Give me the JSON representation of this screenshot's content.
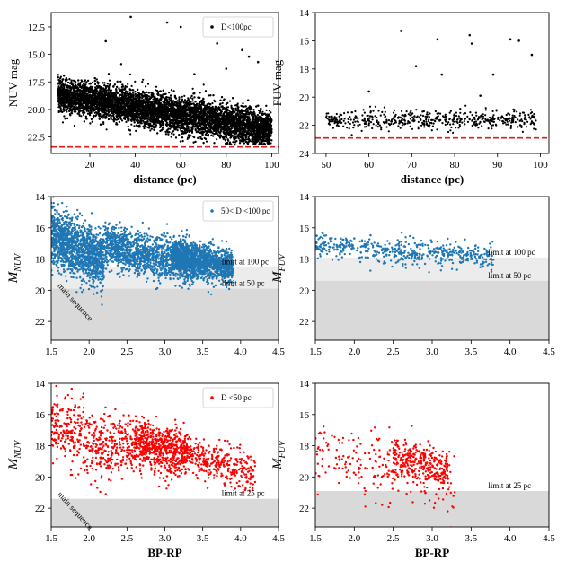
{
  "chart_data": [
    {
      "id": "p1",
      "type": "scatter",
      "xlim": [
        3,
        103
      ],
      "ylim": [
        24,
        11.2
      ],
      "yinverted": true,
      "xticks": [
        20,
        40,
        60,
        80,
        100
      ],
      "yticks": [
        12.5,
        15.0,
        17.5,
        20.0,
        22.5
      ],
      "xticklabels": [
        "20",
        "40",
        "60",
        "80",
        "100"
      ],
      "yticklabels": [
        "12.5",
        "15.0",
        "17.5",
        "20.0",
        "22.5"
      ],
      "xlabel": "distance (pc)",
      "ylabel": "NUV mag",
      "legend": "D<100pc",
      "legend_loc": "upper right",
      "limit_line": 23.4,
      "limit_line_color": "#e31a1c",
      "point_color": "#000000",
      "series": {
        "n": 9500,
        "x_range": [
          6,
          100
        ],
        "y_center": [
          18.6,
          21.9
        ],
        "y_spread": 1.4
      },
      "outliers": [
        [
          38,
          11.6
        ],
        [
          27,
          13.8
        ],
        [
          54,
          12.1
        ],
        [
          60,
          12.5
        ],
        [
          75,
          13.3
        ],
        [
          76,
          14.0
        ],
        [
          87,
          14.6
        ],
        [
          90,
          15.2
        ],
        [
          94,
          15.7
        ],
        [
          80,
          16.3
        ],
        [
          66,
          16.8
        ],
        [
          96,
          13.0
        ]
      ]
    },
    {
      "id": "p2",
      "type": "scatter",
      "xlim": [
        47.5,
        102
      ],
      "ylim": [
        24,
        14
      ],
      "yinverted": true,
      "xticks": [
        50,
        60,
        70,
        80,
        90,
        100
      ],
      "yticks": [
        14,
        16,
        18,
        20,
        22,
        24
      ],
      "xticklabels": [
        "50",
        "60",
        "70",
        "80",
        "90",
        "100"
      ],
      "yticklabels": [
        "14",
        "16",
        "18",
        "20",
        "22",
        "24"
      ],
      "xlabel": "distance (pc)",
      "ylabel": "FUV mag",
      "limit_line": 22.9,
      "limit_line_color": "#e31a1c",
      "point_color": "#000000",
      "series": {
        "n": 520,
        "x_range": [
          50,
          99
        ],
        "y_center": [
          21.6,
          21.6
        ],
        "y_spread": 0.6
      },
      "outliers": [
        [
          67.5,
          15.3
        ],
        [
          76,
          15.9
        ],
        [
          83.5,
          15.6
        ],
        [
          84,
          16.2
        ],
        [
          93,
          15.9
        ],
        [
          95,
          16.0
        ],
        [
          98,
          17.0
        ],
        [
          71,
          17.8
        ],
        [
          77,
          18.4
        ],
        [
          89,
          18.4
        ],
        [
          60,
          19.6
        ],
        [
          86,
          19.9
        ]
      ]
    },
    {
      "id": "p3",
      "type": "scatter",
      "xlim": [
        1.5,
        4.5
      ],
      "ylim": [
        23.2,
        14
      ],
      "yinverted": true,
      "xticks": [
        1.5,
        2.0,
        2.5,
        3.0,
        3.5,
        4.0,
        4.5
      ],
      "yticks": [
        14,
        16,
        18,
        20,
        22
      ],
      "xticklabels": [
        "1.5",
        "2.0",
        "2.5",
        "3.0",
        "3.5",
        "4.0",
        "4.5"
      ],
      "yticklabels": [
        "14",
        "16",
        "18",
        "20",
        "22"
      ],
      "ylabel": "M_NUV",
      "legend": "50< D <100 pc",
      "legend_loc": "upper right",
      "point_color": "#1f77b4",
      "bands": [
        {
          "from": 18.5,
          "to": 23.2,
          "color": "#ececec"
        },
        {
          "from": 19.9,
          "to": 23.2,
          "color": "#d9d9d9"
        }
      ],
      "annotations": [
        {
          "text": "limit at 100 pc",
          "x": 3.75,
          "y": 18.5
        },
        {
          "text": "limit at 50 pc",
          "x": 3.75,
          "y": 19.9
        },
        {
          "text": "main sequence",
          "x": 1.58,
          "y": 19.9,
          "rotate": 48
        }
      ],
      "series": {
        "n": 4200,
        "clumps": [
          [
            1.5,
            2.2,
            16.1,
            18.6
          ],
          [
            2.2,
            3.4,
            16.8,
            18.7
          ],
          [
            3.1,
            3.9,
            17.4,
            18.9
          ]
        ]
      }
    },
    {
      "id": "p4",
      "type": "scatter",
      "xlim": [
        1.5,
        4.5
      ],
      "ylim": [
        23.2,
        14
      ],
      "yinverted": true,
      "xticks": [
        1.5,
        2.0,
        2.5,
        3.0,
        3.5,
        4.0,
        4.5
      ],
      "yticks": [
        14,
        16,
        18,
        20,
        22
      ],
      "xticklabels": [
        "1.5",
        "2.0",
        "2.5",
        "3.0",
        "3.5",
        "4.0",
        "4.5"
      ],
      "yticklabels": [
        "14",
        "16",
        "18",
        "20",
        "22"
      ],
      "ylabel": "M_FUV",
      "point_color": "#1f77b4",
      "bands": [
        {
          "from": 17.9,
          "to": 23.2,
          "color": "#ececec"
        },
        {
          "from": 19.4,
          "to": 23.2,
          "color": "#d9d9d9"
        }
      ],
      "annotations": [
        {
          "text": "limit at 100 pc",
          "x": 3.72,
          "y": 17.9
        },
        {
          "text": "limit at 50 pc",
          "x": 3.72,
          "y": 19.4
        }
      ],
      "series": {
        "n": 520,
        "clumps": [
          [
            1.5,
            3.8,
            16.9,
            18.1
          ]
        ]
      }
    },
    {
      "id": "p5",
      "type": "scatter",
      "xlim": [
        1.5,
        4.5
      ],
      "ylim": [
        23.2,
        14
      ],
      "yinverted": true,
      "xticks": [
        1.5,
        2.0,
        2.5,
        3.0,
        3.5,
        4.0,
        4.5
      ],
      "yticks": [
        14,
        16,
        18,
        20,
        22
      ],
      "xticklabels": [
        "1.5",
        "2.0",
        "2.5",
        "3.0",
        "3.5",
        "4.0",
        "4.5"
      ],
      "yticklabels": [
        "14",
        "16",
        "18",
        "20",
        "22"
      ],
      "xlabel": "BP-RP",
      "ylabel": "M_NUV",
      "legend": "D <50 pc",
      "legend_loc": "upper right",
      "point_color": "#ff0000",
      "bands": [
        {
          "from": 21.4,
          "to": 23.2,
          "color": "#d9d9d9"
        }
      ],
      "annotations": [
        {
          "text": "limit at 25 pc",
          "x": 3.75,
          "y": 21.4
        },
        {
          "text": "main sequence",
          "x": 1.58,
          "y": 21.3,
          "rotate": 48
        }
      ],
      "series": {
        "n": 1500,
        "clumps": [
          [
            1.5,
            2.3,
            16.0,
            19.0
          ],
          [
            2.3,
            3.2,
            17.2,
            19.5
          ],
          [
            2.6,
            3.3,
            17.0,
            18.8
          ],
          [
            3.2,
            4.2,
            18.2,
            20.0
          ]
        ]
      }
    },
    {
      "id": "p6",
      "type": "scatter",
      "xlim": [
        1.5,
        4.5
      ],
      "ylim": [
        23.2,
        14
      ],
      "yinverted": true,
      "xticks": [
        1.5,
        2.0,
        2.5,
        3.0,
        3.5,
        4.0,
        4.5
      ],
      "yticks": [
        14,
        16,
        18,
        20,
        22
      ],
      "xticklabels": [
        "1.5",
        "2.0",
        "2.5",
        "3.0",
        "3.5",
        "4.0",
        "4.5"
      ],
      "yticklabels": [
        "14",
        "16",
        "18",
        "20",
        "22"
      ],
      "xlabel": "BP-RP",
      "ylabel": "M_FUV",
      "point_color": "#ff0000",
      "bands": [
        {
          "from": 20.9,
          "to": 23.2,
          "color": "#d9d9d9"
        }
      ],
      "annotations": [
        {
          "text": "limit at 25 pc",
          "x": 3.72,
          "y": 20.9
        }
      ],
      "series": {
        "n": 520,
        "clumps": [
          [
            1.5,
            3.3,
            17.8,
            21.0
          ],
          [
            2.5,
            3.2,
            18.3,
            19.8
          ]
        ]
      }
    }
  ]
}
